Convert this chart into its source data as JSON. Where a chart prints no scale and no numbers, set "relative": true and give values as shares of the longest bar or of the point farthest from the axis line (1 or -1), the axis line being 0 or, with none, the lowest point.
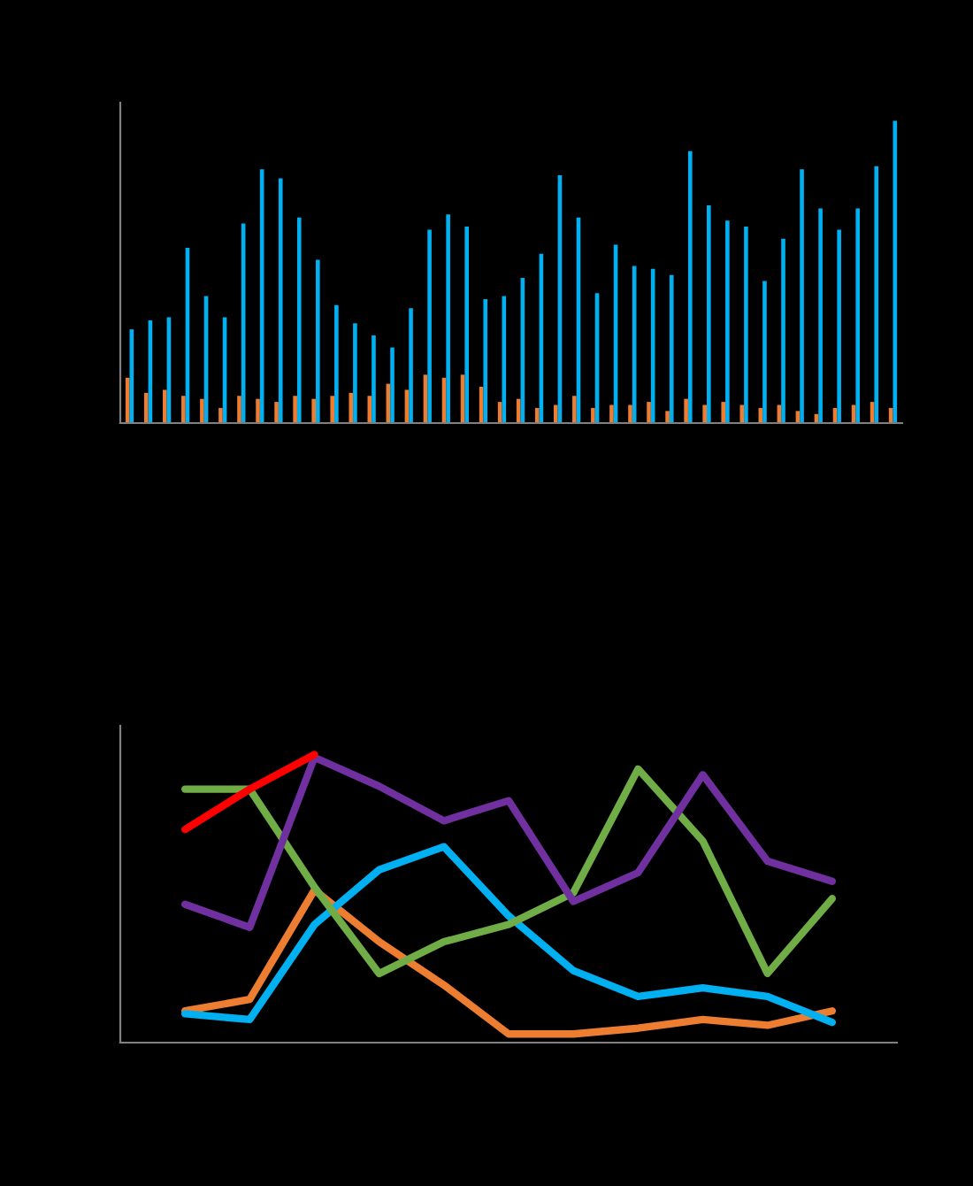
{
  "chart_data": [
    {
      "type": "bar",
      "relative": true,
      "categories": [
        null,
        null,
        null,
        null,
        null,
        null,
        null,
        null,
        null,
        null,
        null,
        null,
        null,
        null,
        null,
        null,
        null,
        null,
        null,
        null,
        null,
        null,
        null,
        null,
        null,
        null,
        null,
        null,
        null,
        null,
        null,
        null,
        null,
        null,
        null,
        null,
        null,
        null,
        null,
        null,
        null,
        null
      ],
      "series": [
        {
          "color": "#ed7d31",
          "values": [
            0.15,
            0.1,
            0.11,
            0.09,
            0.08,
            0.05,
            0.09,
            0.08,
            0.07,
            0.09,
            0.08,
            0.09,
            0.1,
            0.09,
            0.13,
            0.11,
            0.16,
            0.15,
            0.16,
            0.12,
            0.07,
            0.08,
            0.05,
            0.06,
            0.09,
            0.05,
            0.06,
            0.06,
            0.07,
            0.04,
            0.08,
            0.06,
            0.07,
            0.06,
            0.05,
            0.06,
            0.04,
            0.03,
            0.05,
            0.06,
            0.07,
            0.05
          ]
        },
        {
          "color": "#00b0f0",
          "values": [
            0.31,
            0.34,
            0.35,
            0.58,
            0.42,
            0.35,
            0.66,
            0.84,
            0.81,
            0.68,
            0.54,
            0.39,
            0.33,
            0.29,
            0.25,
            0.38,
            0.64,
            0.69,
            0.65,
            0.41,
            0.42,
            0.48,
            0.56,
            0.82,
            0.68,
            0.43,
            0.59,
            0.52,
            0.51,
            0.49,
            0.9,
            0.72,
            0.67,
            0.65,
            0.47,
            0.61,
            0.84,
            0.71,
            0.64,
            0.71,
            0.85,
            1
          ]
        }
      ]
    },
    {
      "type": "line",
      "relative": true,
      "categories": [
        null,
        null,
        null,
        null,
        null,
        null,
        null,
        null,
        null,
        null,
        null
      ],
      "series": [
        {
          "color": "#ed7d31",
          "values": [
            0.11,
            0.15,
            0.53,
            0.35,
            0.2,
            0.03,
            0.03,
            0.05,
            0.08,
            0.06,
            0.11
          ]
        },
        {
          "color": "#00b0f0",
          "values": [
            0.1,
            0.08,
            0.41,
            0.6,
            0.68,
            0.44,
            0.25,
            0.16,
            0.19,
            0.16,
            0.07
          ]
        },
        {
          "color": "#70ad47",
          "values": [
            0.88,
            0.88,
            0.54,
            0.24,
            0.35,
            0.41,
            0.52,
            0.95,
            0.7,
            0.24,
            0.5
          ]
        },
        {
          "color": "#7030a0",
          "values": [
            0.48,
            0.4,
            0.99,
            0.89,
            0.77,
            0.84,
            0.49,
            0.59,
            0.93,
            0.63,
            0.56
          ]
        },
        {
          "color": "#ff0000",
          "values": [
            0.74,
            0.88,
            1,
            null,
            null,
            null,
            null,
            null,
            null,
            null,
            null
          ]
        }
      ]
    }
  ]
}
